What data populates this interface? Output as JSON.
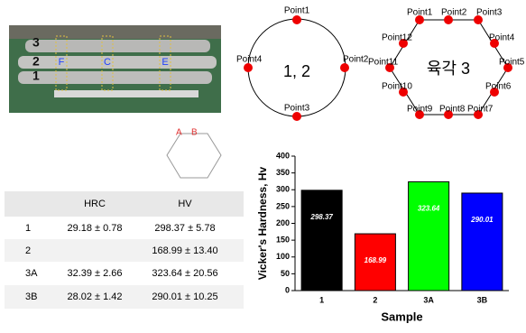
{
  "photo": {
    "rod_labels": [
      "3",
      "2",
      "1"
    ],
    "mark_labels": [
      "F",
      "C",
      "E"
    ]
  },
  "circle_diagram": {
    "label": "1, 2",
    "points": [
      "Point1",
      "Point2",
      "Point3",
      "Point4"
    ]
  },
  "hexagon_diagram": {
    "label": "육각 3",
    "points": [
      "Point1",
      "Point2",
      "Point3",
      "Point4",
      "Point5",
      "Point6",
      "Point7",
      "Point8",
      "Point9",
      "Point10",
      "Point11",
      "Point12"
    ]
  },
  "small_hexagon": {
    "labels": [
      "A",
      "B"
    ]
  },
  "table": {
    "header": [
      "HRC",
      "HV"
    ],
    "rows": [
      {
        "name": "1",
        "hrc": "29.18 ± 0.78",
        "hv": "298.37 ± 5.78"
      },
      {
        "name": "2",
        "hv": "168.99 ± 13.40"
      },
      {
        "name": "3A",
        "hrc": "32.39 ± 2.66",
        "hv": "323.64 ± 20.56"
      },
      {
        "name": "3B",
        "hrc": "28.02 ± 1.42",
        "hv": "290.01 ± 10.25"
      }
    ]
  },
  "chart_data": {
    "type": "bar",
    "x_label": "Sample",
    "y_label": "Vicker's Hardness, Hv",
    "categories": [
      "1",
      "2",
      "3A",
      "3B"
    ],
    "values": [
      298.37,
      168.99,
      323.64,
      290.01
    ],
    "colors": [
      "#000000",
      "#ff0000",
      "#00ff00",
      "#0000ff"
    ],
    "ylim": [
      0,
      400
    ],
    "yticks": [
      0,
      50,
      100,
      150,
      200,
      250,
      300,
      350,
      400
    ]
  }
}
